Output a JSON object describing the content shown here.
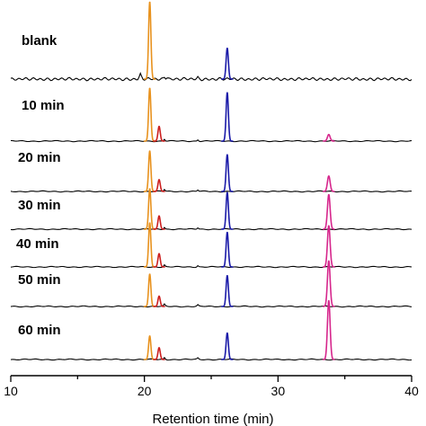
{
  "chart_data": {
    "type": "line",
    "title": "",
    "xlabel": "Retention time (min)",
    "ylabel": "",
    "xlim": [
      10,
      40
    ],
    "xticks": [
      "10",
      "20",
      "30",
      "40"
    ],
    "grid": false,
    "baseline_color": "#000000",
    "peak_colors": {
      "peak_20_4": "#E8921E",
      "peak_21_1": "#CC1F1F",
      "peak_26_2": "#1A1AA8",
      "peak_33_8": "#D6268C"
    },
    "traces": [
      {
        "label": "blank",
        "peaks": [
          {
            "x": 20.4,
            "height": 1.05
          },
          {
            "x": 26.2,
            "height": 0.42
          },
          {
            "x": 33.8,
            "height": 0.0
          },
          {
            "x": 21.1,
            "height": 0.0
          }
        ]
      },
      {
        "label": "10 min",
        "peaks": [
          {
            "x": 20.4,
            "height": 0.72
          },
          {
            "x": 21.1,
            "height": 0.2
          },
          {
            "x": 26.2,
            "height": 0.66
          },
          {
            "x": 33.8,
            "height": 0.09
          }
        ]
      },
      {
        "label": "20 min",
        "peaks": [
          {
            "x": 20.4,
            "height": 0.55
          },
          {
            "x": 21.1,
            "height": 0.16
          },
          {
            "x": 26.2,
            "height": 0.5
          },
          {
            "x": 33.8,
            "height": 0.21
          }
        ]
      },
      {
        "label": "30 min",
        "peaks": [
          {
            "x": 20.4,
            "height": 0.55
          },
          {
            "x": 21.1,
            "height": 0.18
          },
          {
            "x": 26.2,
            "height": 0.5
          },
          {
            "x": 33.8,
            "height": 0.47
          }
        ]
      },
      {
        "label": "40 min",
        "peaks": [
          {
            "x": 20.4,
            "height": 0.6
          },
          {
            "x": 21.1,
            "height": 0.18
          },
          {
            "x": 26.2,
            "height": 0.47
          },
          {
            "x": 33.8,
            "height": 0.56
          }
        ]
      },
      {
        "label": "50 min",
        "peaks": [
          {
            "x": 20.4,
            "height": 0.44
          },
          {
            "x": 21.1,
            "height": 0.14
          },
          {
            "x": 26.2,
            "height": 0.42
          },
          {
            "x": 33.8,
            "height": 0.62
          }
        ]
      },
      {
        "label": "60 min",
        "peaks": [
          {
            "x": 20.4,
            "height": 0.32
          },
          {
            "x": 21.1,
            "height": 0.16
          },
          {
            "x": 26.2,
            "height": 0.36
          },
          {
            "x": 33.8,
            "height": 0.8
          }
        ]
      }
    ]
  }
}
